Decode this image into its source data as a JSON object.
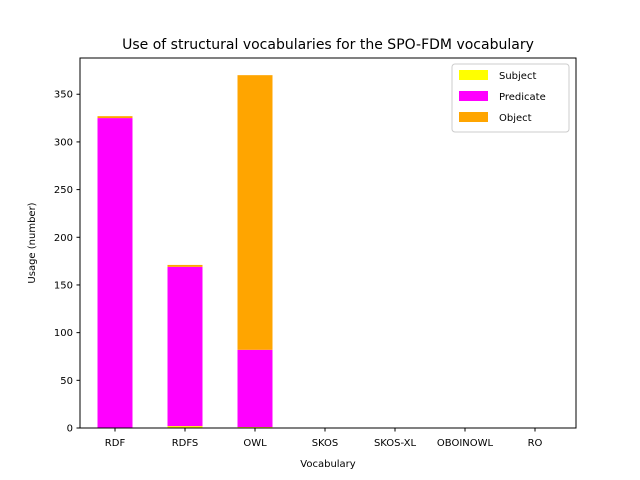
{
  "chart_data": {
    "type": "bar",
    "stacked": true,
    "title": "Use of structural vocabularies for the SPO-FDM vocabulary",
    "xlabel": "Vocabulary",
    "ylabel": "Usage (number)",
    "categories": [
      "RDF",
      "RDFS",
      "OWL",
      "SKOS",
      "SKOS-XL",
      "OBOINOWL",
      "RO"
    ],
    "series": [
      {
        "name": "Subject",
        "color": "#ffff00",
        "values": [
          0,
          2,
          1,
          0,
          0,
          0,
          0
        ]
      },
      {
        "name": "Predicate",
        "color": "#ff00ff",
        "values": [
          325,
          167,
          81,
          0,
          0,
          0,
          0
        ]
      },
      {
        "name": "Object",
        "color": "#ffa500",
        "values": [
          2,
          2,
          288,
          0,
          0,
          0,
          0
        ]
      }
    ],
    "ylim": [
      0,
      388
    ],
    "yticks": [
      0,
      50,
      100,
      150,
      200,
      250,
      300,
      350
    ],
    "grid": false,
    "legend_position": "top-right"
  }
}
